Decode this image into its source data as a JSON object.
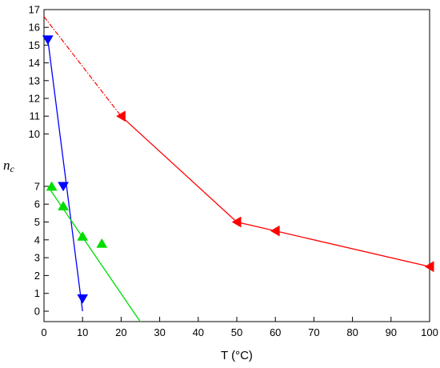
{
  "chart_data": {
    "type": "scatter",
    "xlabel": "T (°C)",
    "ylabel_main": "n",
    "ylabel_sub": "c",
    "xlim": [
      0,
      100
    ],
    "x_ticks": [
      0,
      10,
      20,
      30,
      40,
      50,
      60,
      70,
      80,
      90,
      100
    ],
    "y_ticks": [
      0,
      1,
      2,
      3,
      4,
      5,
      6,
      7,
      10,
      11,
      12,
      13,
      14,
      15,
      16,
      17
    ],
    "y_axis_break": [
      7,
      10
    ],
    "grid": false,
    "series": [
      {
        "color": "#0000ff",
        "marker": "triangle-down",
        "points": [
          [
            1,
            15.3
          ],
          [
            5,
            7.0
          ],
          [
            10,
            0.7
          ]
        ],
        "fit_line": {
          "x": [
            1,
            10
          ],
          "y": [
            15.3,
            0.0
          ],
          "style": "solid"
        }
      },
      {
        "color": "#00dd00",
        "marker": "triangle-up",
        "points": [
          [
            2,
            7.0
          ],
          [
            5,
            5.9
          ],
          [
            10,
            4.2
          ],
          [
            15,
            3.8
          ]
        ],
        "fit_line": {
          "x": [
            1,
            25
          ],
          "y": [
            7.0,
            -0.6
          ],
          "style": "solid"
        }
      },
      {
        "color": "#ff0000",
        "marker": "triangle-left",
        "points": [
          [
            20,
            11.0
          ],
          [
            50,
            5.0
          ],
          [
            60,
            4.5
          ],
          [
            100,
            2.5
          ]
        ],
        "fit_line": {
          "x": [
            20,
            50,
            100
          ],
          "y": [
            11.0,
            5.0,
            2.5
          ],
          "style": "solid"
        },
        "extrapolation": {
          "x": [
            0,
            20
          ],
          "y": [
            16.6,
            11.0
          ],
          "style": "dash-dot"
        }
      }
    ]
  }
}
